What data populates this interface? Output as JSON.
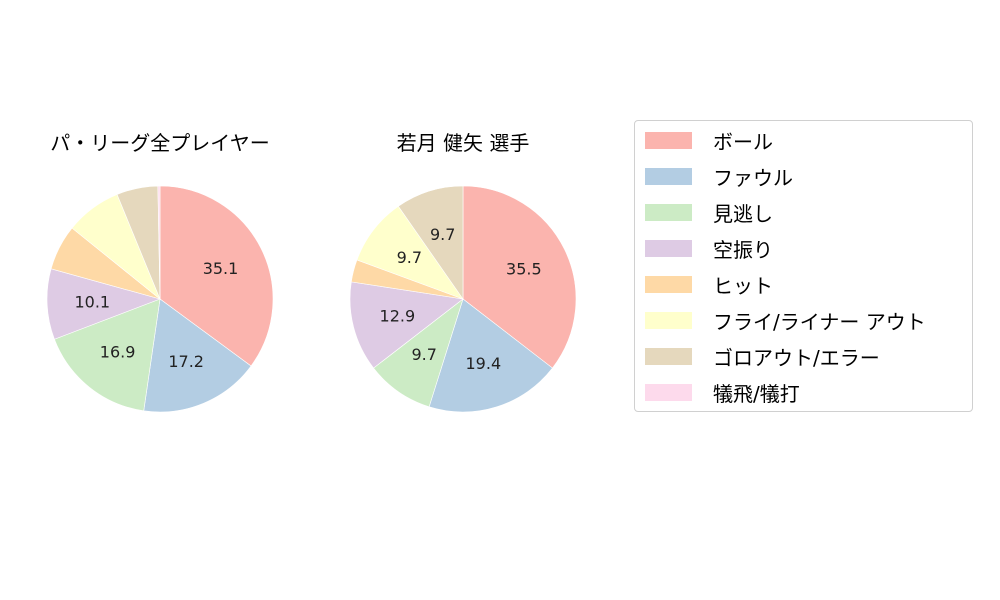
{
  "chart_data": [
    {
      "type": "pie",
      "title": "パ・リーグ全プレイヤー",
      "categories": [
        "ボール",
        "ファウル",
        "見逃し",
        "空振り",
        "ヒット",
        "フライ/ライナー アウト",
        "ゴロアウト/エラー",
        "犠飛/犠打"
      ],
      "values": [
        35.1,
        17.2,
        16.9,
        10.1,
        6.5,
        8.0,
        5.9,
        0.3
      ],
      "labels_shown": [
        "35.1",
        "17.2",
        "16.9",
        "10.1",
        "",
        "",
        "",
        ""
      ],
      "startangle": 90,
      "direction": "clockwise"
    },
    {
      "type": "pie",
      "title": "若月 健矢  選手",
      "categories": [
        "ボール",
        "ファウル",
        "見逃し",
        "空振り",
        "ヒット",
        "フライ/ライナー アウト",
        "ゴロアウト/エラー",
        "犠飛/犠打"
      ],
      "values": [
        35.5,
        19.4,
        9.7,
        12.9,
        3.2,
        9.7,
        9.7,
        0
      ],
      "labels_shown": [
        "35.5",
        "19.4",
        "9.7",
        "12.9",
        "",
        "9.7",
        "9.7",
        ""
      ],
      "startangle": 90,
      "direction": "clockwise"
    }
  ],
  "titles": {
    "left": "パ・リーグ全プレイヤー",
    "right": "若月 健矢  選手"
  },
  "legend": {
    "items": [
      {
        "label": "ボール",
        "color": "#fbb4ae"
      },
      {
        "label": "ファウル",
        "color": "#b3cde3"
      },
      {
        "label": "見逃し",
        "color": "#ccebc5"
      },
      {
        "label": "空振り",
        "color": "#decbe4"
      },
      {
        "label": "ヒット",
        "color": "#fed9a6"
      },
      {
        "label": "フライ/ライナー アウト",
        "color": "#ffffcc"
      },
      {
        "label": "ゴロアウト/エラー",
        "color": "#e5d8bd"
      },
      {
        "label": "犠飛/犠打",
        "color": "#fddaec"
      }
    ]
  }
}
